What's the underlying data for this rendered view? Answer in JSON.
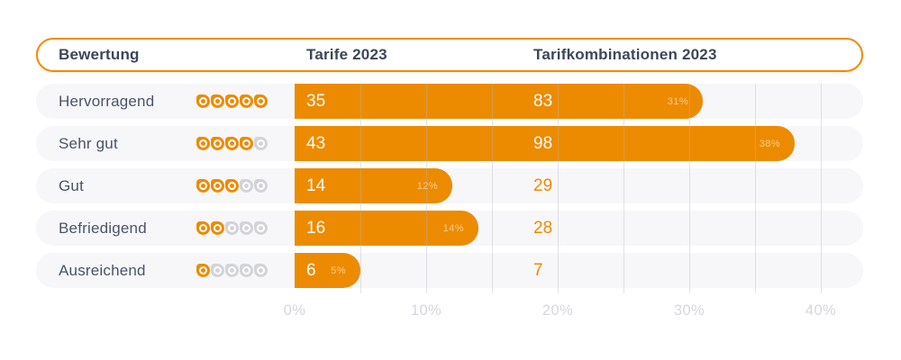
{
  "header": {
    "col_bewertung": "Bewertung",
    "col_tarife": "Tarife 2023",
    "col_kombi": "Tarifkombinationen 2023"
  },
  "rows": [
    {
      "label": "Hervorragend",
      "seals": 5,
      "tarife": "35",
      "kombi": "83",
      "percent": 31,
      "percent_label": "31%"
    },
    {
      "label": "Sehr gut",
      "seals": 4,
      "tarife": "43",
      "kombi": "98",
      "percent": 38,
      "percent_label": "38%"
    },
    {
      "label": "Gut",
      "seals": 3,
      "tarife": "14",
      "kombi": "29",
      "percent": 12,
      "percent_label": "12%"
    },
    {
      "label": "Befriedigend",
      "seals": 2,
      "tarife": "16",
      "kombi": "28",
      "percent": 14,
      "percent_label": "14%"
    },
    {
      "label": "Ausreichend",
      "seals": 1,
      "tarife": "6",
      "kombi": "7",
      "percent": 5,
      "percent_label": "5%"
    }
  ],
  "axis": {
    "tick_labels": [
      "0%",
      "10%",
      "20%",
      "30%",
      "40%"
    ],
    "min": 0,
    "max": 40,
    "minor_step_percent": 5
  },
  "colors": {
    "bar_orange": "#ED8B00",
    "header_border_orange": "#F08A0A",
    "row_background": "#F7F7F9",
    "text_slate": "#4A5468",
    "seal_empty_gray": "#D3D4D8",
    "axis_label_gray": "#D6D7DB"
  },
  "chart_data": {
    "type": "bar",
    "orientation": "horizontal",
    "title": "",
    "categories": [
      "Hervorragend",
      "Sehr gut",
      "Gut",
      "Befriedigend",
      "Ausreichend"
    ],
    "ratings_out_of_5": [
      5,
      4,
      3,
      2,
      1
    ],
    "series": [
      {
        "name": "Tarife 2023",
        "values": [
          35,
          43,
          14,
          16,
          6
        ],
        "share_percent": [
          31,
          38,
          12,
          14,
          5
        ]
      },
      {
        "name": "Tarifkombinationen 2023",
        "values": [
          83,
          98,
          29,
          28,
          7
        ]
      }
    ],
    "bars_encode": "Tarife 2023 share in percent",
    "xlabel": "",
    "ylabel": "Bewertung",
    "xlim": [
      0,
      40
    ],
    "x_tick_labels": [
      "0%",
      "10%",
      "20%",
      "30%",
      "40%"
    ],
    "grid": "vertical minor lines every 5%",
    "legend_position": "header row"
  }
}
